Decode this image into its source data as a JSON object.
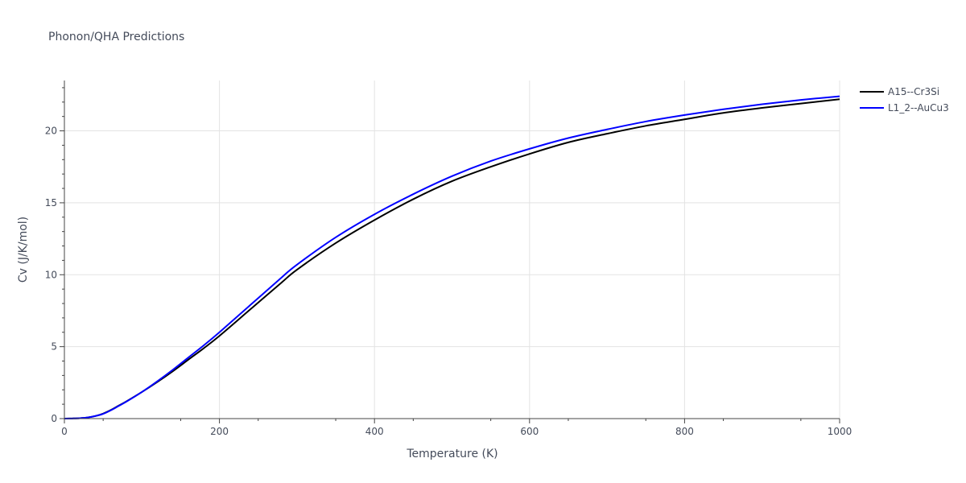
{
  "chart_data": {
    "type": "line",
    "title": "Phonon/QHA Predictions",
    "xlabel": "Temperature (K)",
    "ylabel": "Cv (J/K/mol)",
    "xlim": [
      0,
      1000
    ],
    "ylim": [
      0,
      23.5
    ],
    "xticks": [
      0,
      200,
      400,
      600,
      800,
      1000
    ],
    "yticks": [
      0,
      5,
      10,
      15,
      20
    ],
    "grid": true,
    "legend_position": "top-right",
    "series": [
      {
        "name": "A15--Cr3Si",
        "color": "#000000",
        "x": [
          0,
          10,
          20,
          30,
          40,
          50,
          60,
          70,
          80,
          100,
          120,
          140,
          160,
          180,
          200,
          240,
          280,
          300,
          350,
          400,
          450,
          500,
          550,
          600,
          650,
          700,
          750,
          800,
          850,
          900,
          950,
          1000
        ],
        "y": [
          0,
          0.01,
          0.03,
          0.08,
          0.18,
          0.35,
          0.6,
          0.9,
          1.2,
          1.85,
          2.55,
          3.3,
          4.1,
          4.9,
          5.75,
          7.6,
          9.45,
          10.35,
          12.2,
          13.8,
          15.25,
          16.5,
          17.5,
          18.4,
          19.2,
          19.8,
          20.35,
          20.8,
          21.25,
          21.6,
          21.9,
          22.2
        ]
      },
      {
        "name": "L1_2--AuCu3",
        "color": "#0000ff",
        "x": [
          0,
          10,
          20,
          30,
          40,
          50,
          60,
          70,
          80,
          100,
          120,
          140,
          160,
          180,
          200,
          240,
          280,
          300,
          350,
          400,
          450,
          500,
          550,
          600,
          650,
          700,
          750,
          800,
          850,
          900,
          950,
          1000
        ],
        "y": [
          0,
          0.01,
          0.03,
          0.08,
          0.18,
          0.33,
          0.58,
          0.88,
          1.18,
          1.85,
          2.6,
          3.4,
          4.25,
          5.1,
          6.0,
          7.9,
          9.8,
          10.7,
          12.6,
          14.2,
          15.6,
          16.85,
          17.9,
          18.75,
          19.5,
          20.1,
          20.65,
          21.1,
          21.5,
          21.85,
          22.15,
          22.4
        ]
      }
    ]
  }
}
